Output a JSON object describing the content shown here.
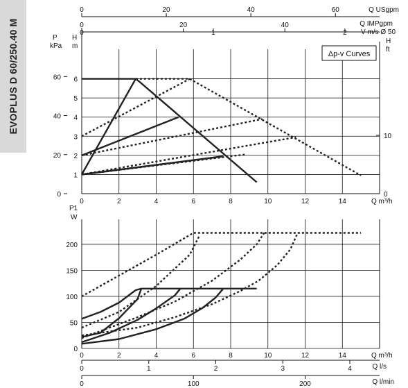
{
  "sidebar_label": "EVOPLUS D 60/250.40 M",
  "chart_data": [
    {
      "type": "line",
      "title": "",
      "legend": "Δp-v Curves",
      "xlabel": "Q m³/h",
      "xlim": [
        0,
        16
      ],
      "x_ticks": [
        0,
        2,
        4,
        6,
        8,
        10,
        12,
        14
      ],
      "ylabel_left_primary": "H m",
      "ylim": [
        0,
        7
      ],
      "y_ticks": [
        1,
        2,
        3,
        4,
        5,
        6
      ],
      "ylabel_left_secondary": "P kPa",
      "kpa_ticks": [
        0,
        20,
        40,
        60
      ],
      "ylabel_right": "H ft",
      "ft_ticks": [
        0,
        10
      ],
      "top_axes": [
        {
          "label": "Q USgpm",
          "ticks": [
            0,
            20,
            40,
            60
          ],
          "per_m3h": 4.403
        },
        {
          "label": "Q IMPgpm",
          "ticks": [
            0,
            20,
            40
          ],
          "per_m3h": 3.666
        },
        {
          "label": "V m/s Ø 50",
          "ticks": [
            0,
            1,
            2
          ],
          "per_m3h": 0.1415
        }
      ],
      "series": [
        {
          "style": "solid",
          "points": [
            [
              0,
              6
            ],
            [
              2.9,
              6
            ],
            [
              3.1,
              5.85
            ],
            [
              9.4,
              0.6
            ]
          ]
        },
        {
          "style": "solid",
          "points": [
            [
              0,
              1
            ],
            [
              7.6,
              1.95
            ]
          ]
        },
        {
          "style": "solid",
          "points": [
            [
              0,
              1
            ],
            [
              7.6,
              1.95
            ]
          ]
        },
        {
          "style": "solid",
          "points": [
            [
              0,
              2
            ],
            [
              5.2,
              4
            ]
          ]
        },
        {
          "style": "solid",
          "points": [
            [
              0,
              1
            ],
            [
              2.9,
              6
            ]
          ]
        },
        {
          "style": "dashed",
          "points": [
            [
              2.9,
              6
            ],
            [
              5.8,
              6
            ],
            [
              15,
              0.95
            ]
          ]
        },
        {
          "style": "dashed",
          "points": [
            [
              0,
              3
            ],
            [
              5.8,
              6
            ]
          ]
        },
        {
          "style": "dashed",
          "points": [
            [
              0,
              2
            ],
            [
              9.7,
              3.9
            ]
          ]
        },
        {
          "style": "dashed",
          "points": [
            [
              0,
              1
            ],
            [
              11.5,
              2.95
            ]
          ]
        },
        {
          "style": "dashed",
          "points": [
            [
              0,
              1
            ],
            [
              8.8,
              2.05
            ]
          ]
        }
      ]
    },
    {
      "type": "line",
      "title": "",
      "ylabel": "P1 W",
      "ylim": [
        0,
        240
      ],
      "y_ticks": [
        0,
        50,
        100,
        150,
        200
      ],
      "xlabel": "Q m³/h",
      "xlim": [
        0,
        16
      ],
      "x_ticks": [
        0,
        2,
        4,
        6,
        8,
        10,
        12,
        14
      ],
      "bottom_axes": [
        {
          "label": "Q l/s",
          "ticks": [
            0,
            1,
            2,
            3,
            4
          ],
          "per_m3h": 0.2778
        },
        {
          "label": "Q l/min",
          "ticks": [
            0,
            100,
            200
          ],
          "per_m3h": 16.667
        }
      ],
      "series": [
        {
          "style": "solid",
          "points": [
            [
              0,
              57
            ],
            [
              1,
              70
            ],
            [
              2,
              88
            ],
            [
              2.9,
              112
            ],
            [
              3.2,
              115
            ],
            [
              9.4,
              115
            ]
          ]
        },
        {
          "style": "solid",
          "points": [
            [
              0,
              22
            ],
            [
              1,
              30
            ],
            [
              2,
              58
            ],
            [
              3,
              95
            ],
            [
              3.2,
              115
            ]
          ]
        },
        {
          "style": "solid",
          "points": [
            [
              0,
              12
            ],
            [
              1.5,
              30
            ],
            [
              3,
              55
            ],
            [
              4,
              77
            ],
            [
              5,
              102
            ],
            [
              5.3,
              115
            ]
          ]
        },
        {
          "style": "solid",
          "points": [
            [
              0,
              9
            ],
            [
              2,
              18
            ],
            [
              4,
              37
            ],
            [
              5.5,
              57
            ],
            [
              6.5,
              78
            ],
            [
              7.2,
              98
            ],
            [
              7.6,
              115
            ]
          ]
        },
        {
          "style": "dashed",
          "points": [
            [
              0,
              100
            ],
            [
              2,
              140
            ],
            [
              4,
              180
            ],
            [
              6,
              222
            ],
            [
              15,
              222
            ]
          ]
        },
        {
          "style": "dashed",
          "points": [
            [
              0,
              40
            ],
            [
              2,
              70
            ],
            [
              4,
              120
            ],
            [
              5.8,
              180
            ],
            [
              6.3,
              215
            ]
          ]
        },
        {
          "style": "dashed",
          "points": [
            [
              0,
              20
            ],
            [
              3,
              60
            ],
            [
              5,
              90
            ],
            [
              7,
              130
            ],
            [
              8.5,
              170
            ],
            [
              9.4,
              200
            ],
            [
              9.8,
              222
            ]
          ]
        },
        {
          "style": "dashed",
          "points": [
            [
              0,
              25
            ],
            [
              3,
              40
            ],
            [
              5,
              60
            ],
            [
              7,
              85
            ],
            [
              8.5,
              110
            ],
            [
              9.5,
              130
            ],
            [
              10.5,
              160
            ],
            [
              11.2,
              190
            ],
            [
              11.6,
              222
            ]
          ]
        }
      ]
    }
  ]
}
